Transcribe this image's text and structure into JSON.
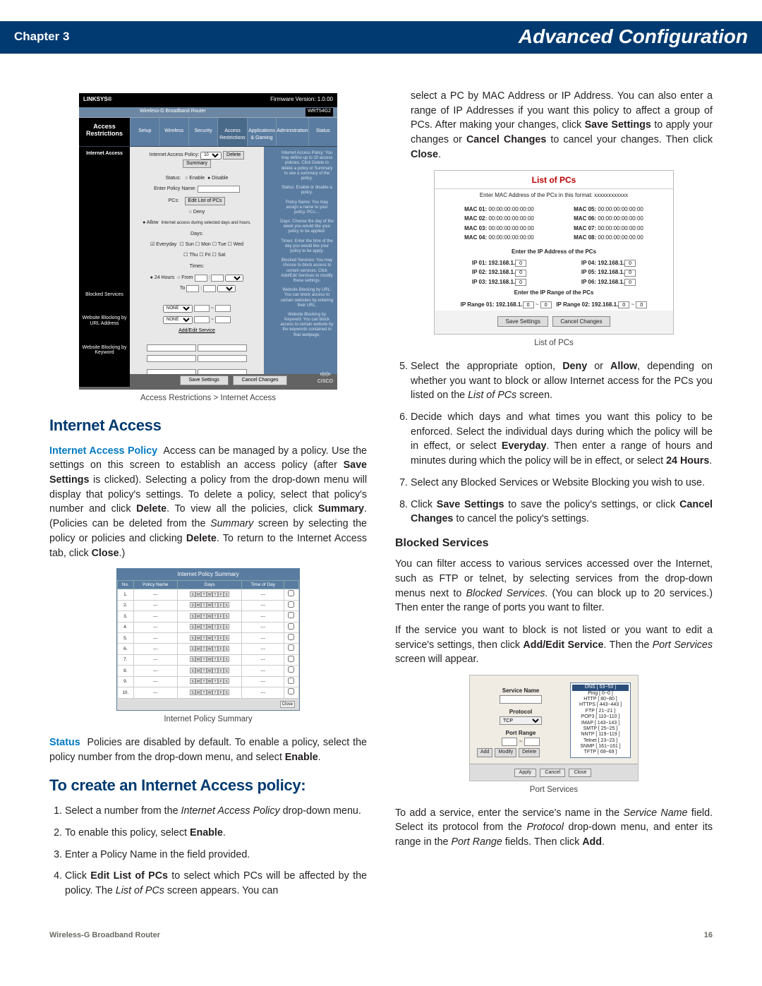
{
  "header": {
    "chapter": "Chapter 3",
    "title": "Advanced Configuration"
  },
  "footer": {
    "product": "Wireless-G Broadband Router",
    "page": "16"
  },
  "left": {
    "fig1": {
      "brand": "LINKSYS®",
      "subbrand": "A Division of Cisco Systems, Inc.",
      "fw": "Firmware Version: 1.0.00",
      "bar_title": "Wireless-G Broadband Router",
      "model": "WRT54G2",
      "panel": "Access Restrictions",
      "tabs": [
        "Setup",
        "Wireless",
        "Security",
        "Access Restrictions",
        "Applications & Gaming",
        "Administration",
        "Status"
      ],
      "side": [
        "Internet Access",
        "Blocked Services",
        "Website Blocking by URL Address",
        "Website Blocking by Keyword"
      ],
      "rows": {
        "iap": "Internet Access Policy:",
        "sel": "10",
        "del": "Delete",
        "sum": "Summary",
        "status": "Status:",
        "en": "Enable",
        "dis": "Disable",
        "epn": "Enter Policy Name:",
        "pcs": "PCs:",
        "editlist": "Edit List of PCs",
        "deny": "Deny",
        "allow": "Allow",
        "denytxt": "Internet access during selected days and hours.",
        "days": "Days:",
        "every": "Everyday",
        "d": [
          "Sun",
          "Mon",
          "Tue",
          "Wed",
          "Thu",
          "Fri",
          "Sat"
        ],
        "times": "Times:",
        "h24": "24 Hours",
        "from": "From",
        "to": "To",
        "none": "NONE",
        "addedit": "Add/Edit Service",
        "save": "Save Settings",
        "cancel": "Cancel Changes",
        "cisco": "CISCO"
      },
      "help": [
        "Internet Access Policy: You may define up to 10 access policies. Click Delete to delete a policy or Summary to see a summary of the policy.",
        "Status: Enable or disable a policy.",
        "Policy Name: You may assign a name to your policy. PCs:...",
        "Days: Choose the day of the week you would like your policy to be applied.",
        "Times: Enter the time of the day you would like your policy to be apply.",
        "Blocked Services: You may choose to block access to certain services. Click Add/Edit Services to modify these settings.",
        "Website Blocking by URL: You can block access to certain websites by entering their URL.",
        "Website Blocking by Keyword: You can block access to certain website by the keywords contained in that webpage."
      ],
      "caption": "Access Restrictions > Internet Access"
    },
    "h_internet": "Internet Access",
    "p_iap": "  Access can be managed by a policy. Use the settings on this screen to establish an access policy (after Save Settings is clicked). Selecting a policy from the drop-down menu will display that policy's settings. To delete a policy, select that policy's number and click Delete. To view all the policies, click Summary. (Policies can be deleted from the Summary screen by selecting the policy or policies and clicking Delete. To return to the Internet Access tab, click Close.)",
    "runin_iap": "Internet Access Policy",
    "fig2": {
      "title": "Internet Policy Summary",
      "cols": [
        "No.",
        "Policy Name",
        "Days",
        "Time of Day",
        ""
      ],
      "rowcount": 10,
      "close": "Close",
      "caption": "Internet Policy Summary"
    },
    "runin_status": "Status",
    "p_status": "  Policies are disabled by default. To enable a policy, select the policy number from the drop-down menu, and select Enable.",
    "h_create": "To create an Internet Access policy:",
    "steps": [
      "Select a number from the Internet Access Policy drop-down menu.",
      "To enable this policy, select Enable.",
      "Enter a Policy Name in the field provided.",
      "Click Edit List of PCs to select which PCs will be affected by the policy. The List of PCs screen appears. You can"
    ]
  },
  "right": {
    "p_cont": "select a PC by MAC Address or IP Address. You can also enter a range of IP Addresses if you want this policy to affect a group of PCs. After making your changes, click Save Settings to apply your changes or Cancel Changes to cancel your changes. Then click Close.",
    "fig3": {
      "title": "List of PCs",
      "mac_hdr": "Enter MAC Address of the PCs in this format: xxxxxxxxxxxx",
      "mac": [
        "MAC 01: 00:00:00:00:00:00",
        "MAC 05: 00:00:00:00:00:00",
        "MAC 02: 00:00:00:00:00:00",
        "MAC 06: 00:00:00:00:00:00",
        "MAC 03: 00:00:00:00:00:00",
        "MAC 07: 00:00:00:00:00:00",
        "MAC 04: 00:00:00:00:00:00",
        "MAC 08: 00:00:00:00:00:00"
      ],
      "ip_hdr": "Enter the IP Address of the PCs",
      "ips": [
        [
          "IP 01: 192.168.1.",
          "0",
          "IP 04: 192.168.1.",
          "0"
        ],
        [
          "IP 02: 192.168.1.",
          "0",
          "IP 05: 192.168.1.",
          "0"
        ],
        [
          "IP 03: 192.168.1.",
          "0",
          "IP 06: 192.168.1.",
          "0"
        ]
      ],
      "range_hdr": "Enter the IP Range of the PCs",
      "range": [
        "IP Range 01: 192.168.1.",
        "0",
        "~",
        "0",
        "IP Range 02: 192.168.1.",
        "0",
        "~",
        "0"
      ],
      "save": "Save Settings",
      "cancel": "Cancel Changes",
      "caption": "List of PCs"
    },
    "steps2": [
      "Select the appropriate option, Deny or Allow, depending on whether you want to block or allow Internet access for the PCs you listed on the List of PCs screen.",
      "Decide which days and what times you want this policy to be enforced. Select the individual days during which the policy will be in effect, or select Everyday. Then enter a range of hours and minutes during which the policy will be in effect, or select 24 Hours.",
      "Select any Blocked Services or Website Blocking you wish to use.",
      "Click Save Settings to save the policy's settings, or click Cancel Changes to cancel the policy's settings."
    ],
    "h_blocked": "Blocked Services",
    "p_blocked1": "You can filter access to various services accessed over the Internet, such as FTP or telnet, by selecting services from the drop-down menus next to Blocked Services. (You can block up to 20 services.) Then enter the range of ports you want to filter.",
    "p_blocked2": "If the service you want to block is not listed or you want to edit a service's settings, then click Add/Edit Service. Then the Port Services screen will appear.",
    "fig4": {
      "sn": "Service Name",
      "proto": "Protocol",
      "pr": "Port Range",
      "list": [
        "DNS [ 53~53 ]",
        "Ping [ 0~0 ]",
        "HTTP [ 80~80 ]",
        "HTTPS [ 443~443 ]",
        "FTP [ 21~21 ]",
        "POP3 [ 110~110 ]",
        "IMAP [ 143~143 ]",
        "SMTP [ 25~25 ]",
        "NNTP [ 119~119 ]",
        "Telnet [ 23~23 ]",
        "SNMP [ 161~161 ]",
        "TFTP [ 69~69 ]"
      ],
      "add": "Add",
      "mod": "Modify",
      "del": "Delete",
      "apply": "Apply",
      "cancel": "Cancel",
      "close": "Close",
      "caption": "Port Services"
    },
    "p_add": "To add a service, enter the service's name in the Service Name field. Select its protocol from the Protocol drop-down menu, and enter its range in the Port Range fields. Then click Add."
  }
}
